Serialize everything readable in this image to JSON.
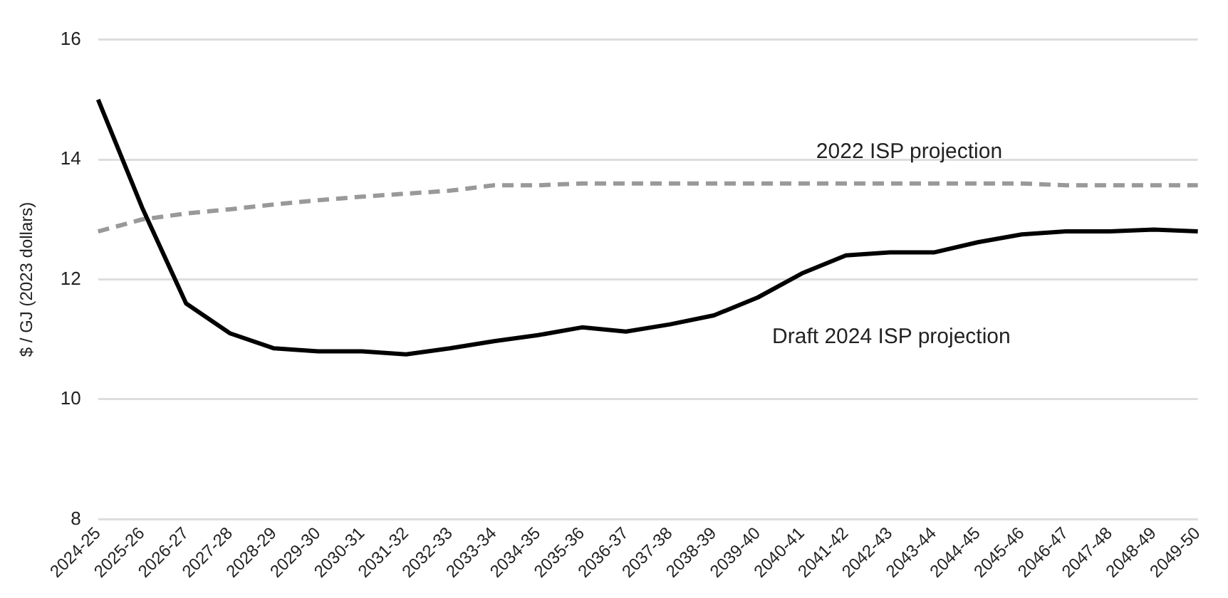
{
  "chart_data": {
    "type": "line",
    "ylabel": "$ / GJ (2023 dollars)",
    "categories": [
      "2024-25",
      "2025-26",
      "2026-27",
      "2027-28",
      "2028-29",
      "2029-30",
      "2030-31",
      "2031-32",
      "2032-33",
      "2033-34",
      "2034-35",
      "2035-36",
      "2036-37",
      "2037-38",
      "2038-39",
      "2039-40",
      "2040-41",
      "2041-42",
      "2042-43",
      "2043-44",
      "2044-45",
      "2045-46",
      "2046-47",
      "2047-48",
      "2048-49",
      "2049-50"
    ],
    "series": [
      {
        "name": "Draft 2024 ISP projection",
        "color": "#000000",
        "line_style": "solid",
        "values": [
          15.0,
          13.2,
          11.6,
          11.1,
          10.85,
          10.8,
          10.8,
          10.75,
          10.85,
          10.97,
          11.07,
          11.2,
          11.13,
          11.25,
          11.4,
          11.7,
          12.1,
          12.4,
          12.45,
          12.45,
          12.62,
          12.75,
          12.8,
          12.8,
          12.83,
          12.8
        ]
      },
      {
        "name": "2022 ISP projection",
        "color": "#999999",
        "line_style": "dashed",
        "values": [
          12.8,
          13.0,
          13.1,
          13.17,
          13.25,
          13.32,
          13.38,
          13.43,
          13.48,
          13.57,
          13.57,
          13.6,
          13.6,
          13.6,
          13.6,
          13.6,
          13.6,
          13.6,
          13.6,
          13.6,
          13.6,
          13.6,
          13.57,
          13.57,
          13.57,
          13.57
        ]
      }
    ],
    "ylim": [
      8,
      16
    ],
    "yticks": [
      8,
      10,
      12,
      14,
      16
    ],
    "grid": "y",
    "legend": false,
    "marker": "none"
  }
}
